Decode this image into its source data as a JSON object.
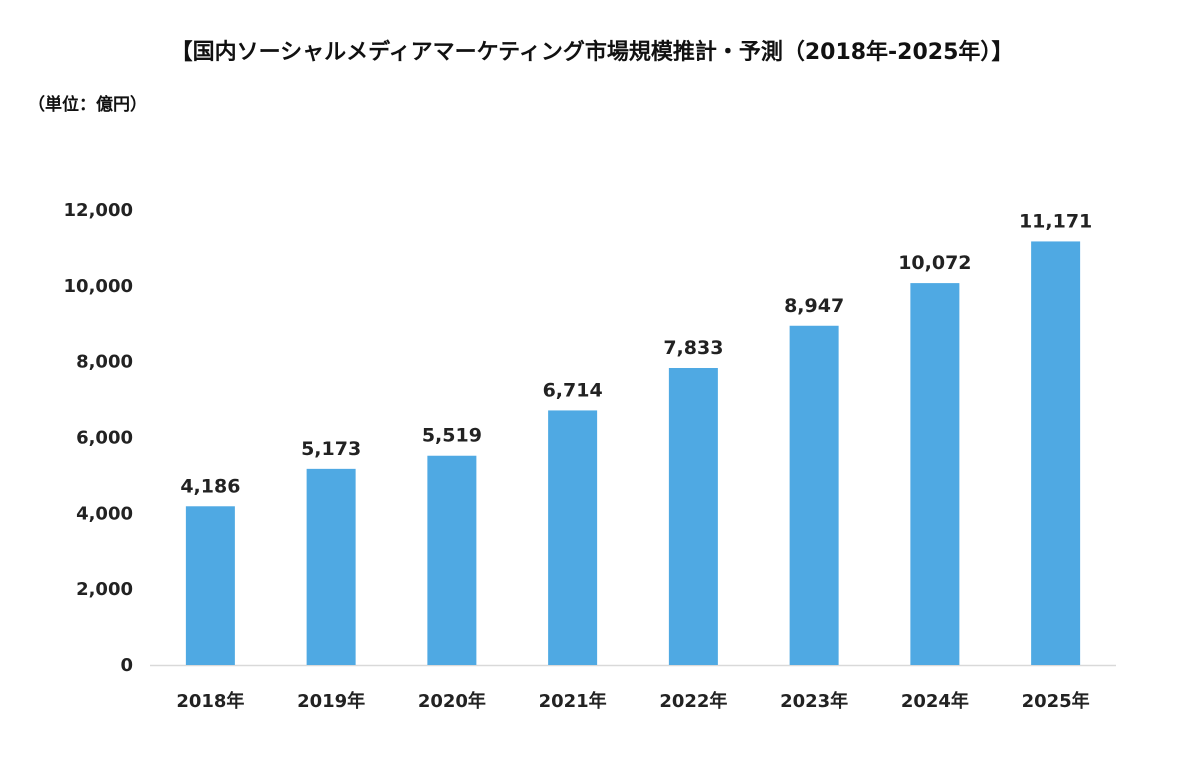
{
  "chart_data": {
    "type": "bar",
    "title": "【国内ソーシャルメディアマーケティング市場規模推計・予測（2018年-2025年）】",
    "unit_label": "（単位：億円）",
    "categories": [
      "2018年",
      "2019年",
      "2020年",
      "2021年",
      "2022年",
      "2023年",
      "2024年",
      "2025年"
    ],
    "values": [
      4186,
      5173,
      5519,
      6714,
      7833,
      8947,
      10072,
      11171
    ],
    "value_labels": [
      "4,186",
      "5,173",
      "5,519",
      "6,714",
      "7,833",
      "8,947",
      "10,072",
      "11,171"
    ],
    "y_ticks": [
      0,
      2000,
      4000,
      6000,
      8000,
      10000,
      12000
    ],
    "y_tick_labels": [
      "0",
      "2,000",
      "4,000",
      "6,000",
      "8,000",
      "10,000",
      "12,000"
    ],
    "ylim": [
      0,
      12000
    ],
    "xlabel": "",
    "ylabel": "",
    "grid": false,
    "legend": "none",
    "bar_color": "#4FA9E3",
    "axis_color": "#D9D9D9"
  }
}
